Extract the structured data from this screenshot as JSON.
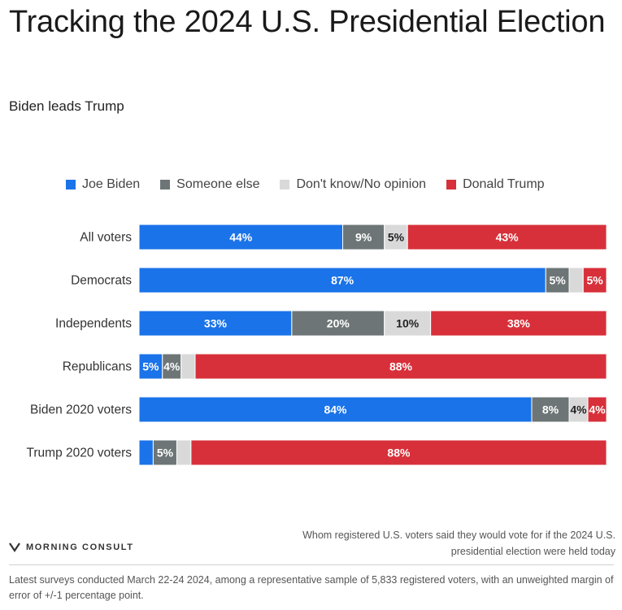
{
  "header": {
    "title": "Tracking the 2024 U.S. Presidential Election",
    "subtitle": "Biden leads Trump"
  },
  "legend": [
    {
      "label": "Joe Biden",
      "color": "#1a73e8"
    },
    {
      "label": "Someone else",
      "color": "#6d7576"
    },
    {
      "label": "Don't know/No opinion",
      "color": "#d9d9d9"
    },
    {
      "label": "Donald Trump",
      "color": "#d7303a"
    }
  ],
  "chart_data": {
    "type": "bar",
    "orientation": "horizontal",
    "stacked": true,
    "normalized": true,
    "categories": [
      "All voters",
      "Democrats",
      "Independents",
      "Republicans",
      "Biden 2020 voters",
      "Trump 2020 voters"
    ],
    "series": [
      {
        "name": "Joe Biden",
        "color": "#1a73e8",
        "values": [
          44,
          87,
          33,
          5,
          84,
          3
        ],
        "labels": [
          "44%",
          "87%",
          "33%",
          "5%",
          "84%",
          ""
        ]
      },
      {
        "name": "Someone else",
        "color": "#6d7576",
        "values": [
          9,
          5,
          20,
          4,
          8,
          5
        ],
        "labels": [
          "9%",
          "5%",
          "20%",
          "4%",
          "8%",
          "5%"
        ]
      },
      {
        "name": "Don't know/No opinion",
        "color": "#d9d9d9",
        "values": [
          5,
          3,
          10,
          3,
          4,
          3
        ],
        "labels": [
          "5%",
          "",
          "10%",
          "",
          "4%",
          ""
        ]
      },
      {
        "name": "Donald Trump",
        "color": "#d7303a",
        "values": [
          43,
          5,
          38,
          88,
          4,
          88
        ],
        "labels": [
          "43%",
          "5%",
          "38%",
          "88%",
          "4%",
          "88%"
        ]
      }
    ]
  },
  "footer": {
    "note": "Whom registered U.S. voters said they would vote for if the 2024 U.S. presidential election were held today",
    "brand": "MORNING CONSULT",
    "source": "Latest surveys conducted March 22-24 2024, among a representative sample of 5,833 registered voters, with an unweighted margin of error of +/-1 percentage point."
  }
}
